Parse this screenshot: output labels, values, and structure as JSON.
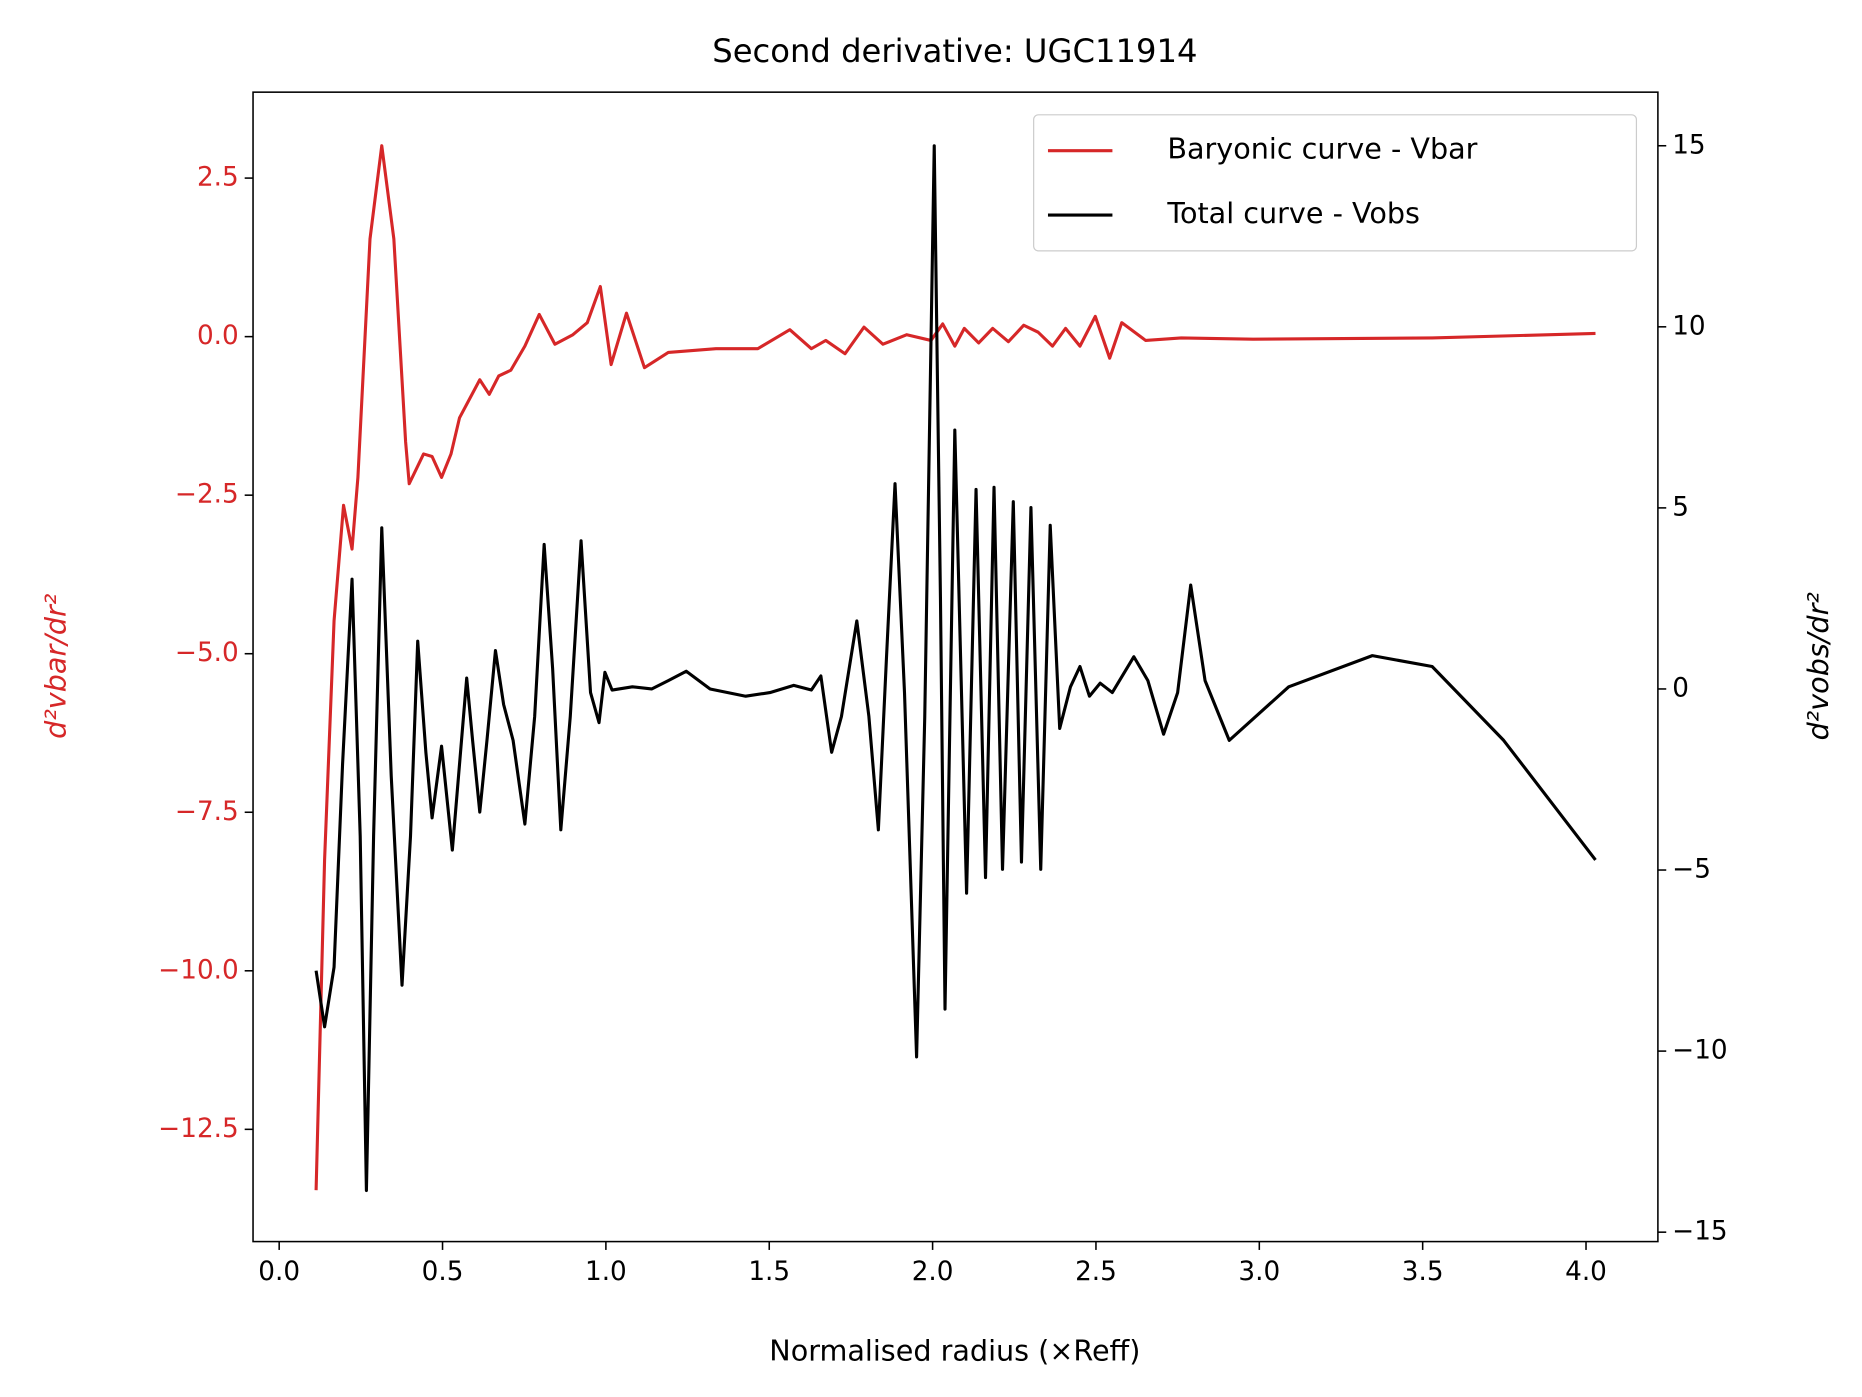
{
  "chart_data": {
    "type": "line",
    "title": "Second derivative: UGC11914",
    "x_label": "Normalised radius (×Reff)",
    "y_label": "d²vbar/dr²",
    "y2_label": "d²vobs/dr²",
    "xlim": [
      -0.08,
      4.22
    ],
    "ylim": [
      -14.27,
      3.855
    ],
    "y2lim": [
      -15.26,
      16.48
    ],
    "xticks": [
      {
        "value": 0,
        "label": "0.0"
      },
      {
        "value": 0.5,
        "label": "0.5"
      },
      {
        "value": 1,
        "label": "1.0"
      },
      {
        "value": 1.5,
        "label": "1.5"
      },
      {
        "value": 2,
        "label": "2.0"
      },
      {
        "value": 2.5,
        "label": "2.5"
      },
      {
        "value": 3,
        "label": "3.0"
      },
      {
        "value": 3.5,
        "label": "3.5"
      },
      {
        "value": 4,
        "label": "4.0"
      }
    ],
    "yticks": [
      {
        "value": 2.5,
        "label": "2.5"
      },
      {
        "value": 0,
        "label": "0.0"
      },
      {
        "value": -2.5,
        "label": "−2.5"
      },
      {
        "value": -5,
        "label": "−5.0"
      },
      {
        "value": -7.5,
        "label": "−7.5"
      },
      {
        "value": -10,
        "label": "−10.0"
      },
      {
        "value": -12.5,
        "label": "−12.5"
      }
    ],
    "y2ticks": [
      15,
      10,
      5,
      0,
      {
        "value": -5,
        "label": "−5"
      },
      {
        "value": -10,
        "label": "−10"
      },
      {
        "value": -15,
        "label": "−15"
      }
    ],
    "y_label_color": "#d62728",
    "legend": "upper right",
    "series": [
      {
        "name": "Baryonic curve - Vbar",
        "color": "#d62728",
        "x": [
          0.113,
          0.139,
          0.168,
          0.197,
          0.223,
          0.241,
          0.278,
          0.314,
          0.351,
          0.387,
          0.398,
          0.442,
          0.468,
          0.497,
          0.526,
          0.552,
          0.581,
          0.614,
          0.643,
          0.672,
          0.709,
          0.752,
          0.796,
          0.844,
          0.899,
          0.943,
          0.983,
          1.016,
          1.063,
          1.118,
          1.191,
          1.337,
          1.465,
          1.563,
          1.629,
          1.673,
          1.732,
          1.79,
          1.848,
          1.921,
          1.995,
          2.031,
          2.068,
          2.097,
          2.141,
          2.184,
          2.232,
          2.279,
          2.323,
          2.367,
          2.407,
          2.451,
          2.498,
          2.542,
          2.579,
          2.652,
          2.761,
          2.981,
          3.529,
          4.029
        ],
        "values": [
          -13.46,
          -8.25,
          -4.48,
          -2.66,
          -3.35,
          -2.22,
          1.54,
          3.01,
          1.54,
          -1.66,
          -2.32,
          -1.85,
          -1.89,
          -2.22,
          -1.85,
          -1.28,
          -1.0,
          -0.68,
          -0.91,
          -0.62,
          -0.53,
          -0.15,
          0.35,
          -0.12,
          0.03,
          0.22,
          0.79,
          -0.44,
          0.37,
          -0.49,
          -0.25,
          -0.19,
          -0.19,
          0.11,
          -0.19,
          -0.06,
          -0.27,
          0.15,
          -0.12,
          0.03,
          -0.06,
          0.2,
          -0.15,
          0.13,
          -0.1,
          0.13,
          -0.08,
          0.18,
          0.07,
          -0.15,
          0.13,
          -0.15,
          0.32,
          -0.34,
          0.22,
          -0.06,
          -0.02,
          -0.04,
          -0.02,
          0.05
        ]
      },
      {
        "name": "Total curve - Vobs",
        "color": "#000000",
        "axis": "y2",
        "x": [
          0.113,
          0.139,
          0.168,
          0.194,
          0.223,
          0.248,
          0.267,
          0.289,
          0.314,
          0.343,
          0.376,
          0.402,
          0.424,
          0.449,
          0.468,
          0.497,
          0.53,
          0.552,
          0.574,
          0.592,
          0.614,
          0.636,
          0.662,
          0.687,
          0.716,
          0.752,
          0.782,
          0.811,
          0.837,
          0.862,
          0.891,
          0.924,
          0.953,
          0.979,
          0.997,
          1.019,
          1.081,
          1.14,
          1.191,
          1.246,
          1.319,
          1.428,
          1.502,
          1.575,
          1.629,
          1.658,
          1.691,
          1.721,
          1.768,
          1.805,
          1.834,
          1.859,
          1.885,
          1.914,
          1.951,
          1.976,
          2.005,
          2.024,
          2.038,
          2.068,
          2.104,
          2.133,
          2.162,
          2.188,
          2.214,
          2.247,
          2.272,
          2.301,
          2.331,
          2.36,
          2.389,
          2.422,
          2.451,
          2.48,
          2.513,
          2.55,
          2.616,
          2.659,
          2.707,
          2.75,
          2.79,
          2.834,
          2.908,
          3.09,
          3.346,
          3.529,
          3.748,
          4.029
        ],
        "values": [
          -7.78,
          -9.33,
          -7.68,
          -2.08,
          3.03,
          -4.06,
          -13.85,
          -4.06,
          4.45,
          -2.41,
          -8.18,
          -4.06,
          1.32,
          -1.75,
          -3.56,
          -1.58,
          -4.45,
          -2.08,
          0.3,
          -1.42,
          -3.4,
          -1.42,
          1.06,
          -0.43,
          -1.42,
          -3.73,
          -0.76,
          3.99,
          0.56,
          -3.89,
          -0.76,
          4.09,
          -0.1,
          -0.93,
          0.46,
          -0.03,
          0.06,
          0.0,
          0.23,
          0.49,
          0.0,
          -0.2,
          -0.1,
          0.1,
          -0.03,
          0.36,
          -1.75,
          -0.76,
          1.88,
          -0.76,
          -3.89,
          0.89,
          5.67,
          -0.1,
          -10.16,
          -0.76,
          15.0,
          2.54,
          -8.84,
          7.15,
          -5.64,
          5.51,
          -5.21,
          5.57,
          -4.98,
          5.17,
          -4.78,
          5.01,
          -4.98,
          4.52,
          -1.09,
          0.06,
          0.62,
          -0.2,
          0.16,
          -0.1,
          0.89,
          0.23,
          -1.25,
          -0.1,
          2.87,
          0.23,
          -1.42,
          0.06,
          0.92,
          0.62,
          -1.42,
          -4.72
        ]
      }
    ]
  }
}
